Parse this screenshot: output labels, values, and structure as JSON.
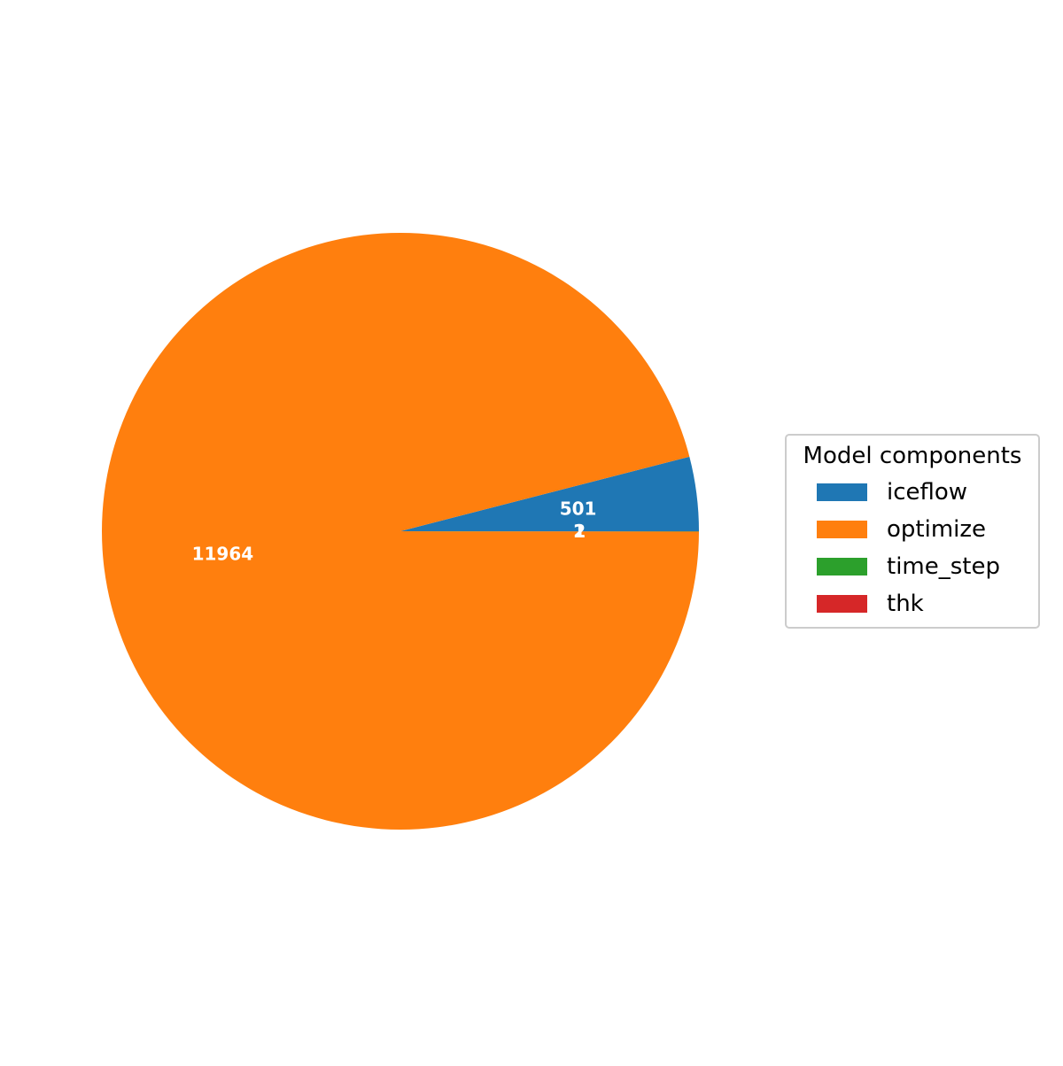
{
  "chart_data": {
    "type": "pie",
    "title": "",
    "categories": [
      "iceflow",
      "optimize",
      "time_step",
      "thk"
    ],
    "values": [
      501,
      11964,
      2,
      1
    ],
    "colors": [
      "#1f77b4",
      "#ff7f0e",
      "#2ca02c",
      "#d62728"
    ],
    "slice_labels": [
      "501",
      "11964",
      "2",
      "1"
    ],
    "start_angle_deg": 0,
    "direction": "counterclockwise",
    "legend": {
      "title": "Model components",
      "placement": "center-right",
      "entries": [
        "iceflow",
        "optimize",
        "time_step",
        "thk"
      ]
    }
  }
}
